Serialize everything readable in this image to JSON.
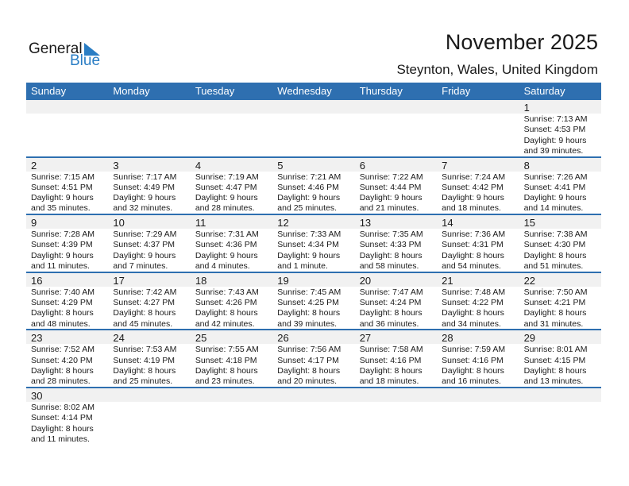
{
  "logo": {
    "general": "General",
    "blue": "Blue"
  },
  "title": "November 2025",
  "location": "Steynton, Wales, United Kingdom",
  "weekdays": [
    "Sunday",
    "Monday",
    "Tuesday",
    "Wednesday",
    "Thursday",
    "Friday",
    "Saturday"
  ],
  "colors": {
    "header": "#2e6fb0",
    "date_band": "#f1f1f1",
    "logo_blue": "#2a7dc4"
  },
  "days": [
    {
      "d": "1",
      "rise": "Sunrise: 7:13 AM",
      "set": "Sunset: 4:53 PM",
      "dl1": "Daylight: 9 hours",
      "dl2": "and 39 minutes."
    },
    {
      "d": "2",
      "rise": "Sunrise: 7:15 AM",
      "set": "Sunset: 4:51 PM",
      "dl1": "Daylight: 9 hours",
      "dl2": "and 35 minutes."
    },
    {
      "d": "3",
      "rise": "Sunrise: 7:17 AM",
      "set": "Sunset: 4:49 PM",
      "dl1": "Daylight: 9 hours",
      "dl2": "and 32 minutes."
    },
    {
      "d": "4",
      "rise": "Sunrise: 7:19 AM",
      "set": "Sunset: 4:47 PM",
      "dl1": "Daylight: 9 hours",
      "dl2": "and 28 minutes."
    },
    {
      "d": "5",
      "rise": "Sunrise: 7:21 AM",
      "set": "Sunset: 4:46 PM",
      "dl1": "Daylight: 9 hours",
      "dl2": "and 25 minutes."
    },
    {
      "d": "6",
      "rise": "Sunrise: 7:22 AM",
      "set": "Sunset: 4:44 PM",
      "dl1": "Daylight: 9 hours",
      "dl2": "and 21 minutes."
    },
    {
      "d": "7",
      "rise": "Sunrise: 7:24 AM",
      "set": "Sunset: 4:42 PM",
      "dl1": "Daylight: 9 hours",
      "dl2": "and 18 minutes."
    },
    {
      "d": "8",
      "rise": "Sunrise: 7:26 AM",
      "set": "Sunset: 4:41 PM",
      "dl1": "Daylight: 9 hours",
      "dl2": "and 14 minutes."
    },
    {
      "d": "9",
      "rise": "Sunrise: 7:28 AM",
      "set": "Sunset: 4:39 PM",
      "dl1": "Daylight: 9 hours",
      "dl2": "and 11 minutes."
    },
    {
      "d": "10",
      "rise": "Sunrise: 7:29 AM",
      "set": "Sunset: 4:37 PM",
      "dl1": "Daylight: 9 hours",
      "dl2": "and 7 minutes."
    },
    {
      "d": "11",
      "rise": "Sunrise: 7:31 AM",
      "set": "Sunset: 4:36 PM",
      "dl1": "Daylight: 9 hours",
      "dl2": "and 4 minutes."
    },
    {
      "d": "12",
      "rise": "Sunrise: 7:33 AM",
      "set": "Sunset: 4:34 PM",
      "dl1": "Daylight: 9 hours",
      "dl2": "and 1 minute."
    },
    {
      "d": "13",
      "rise": "Sunrise: 7:35 AM",
      "set": "Sunset: 4:33 PM",
      "dl1": "Daylight: 8 hours",
      "dl2": "and 58 minutes."
    },
    {
      "d": "14",
      "rise": "Sunrise: 7:36 AM",
      "set": "Sunset: 4:31 PM",
      "dl1": "Daylight: 8 hours",
      "dl2": "and 54 minutes."
    },
    {
      "d": "15",
      "rise": "Sunrise: 7:38 AM",
      "set": "Sunset: 4:30 PM",
      "dl1": "Daylight: 8 hours",
      "dl2": "and 51 minutes."
    },
    {
      "d": "16",
      "rise": "Sunrise: 7:40 AM",
      "set": "Sunset: 4:29 PM",
      "dl1": "Daylight: 8 hours",
      "dl2": "and 48 minutes."
    },
    {
      "d": "17",
      "rise": "Sunrise: 7:42 AM",
      "set": "Sunset: 4:27 PM",
      "dl1": "Daylight: 8 hours",
      "dl2": "and 45 minutes."
    },
    {
      "d": "18",
      "rise": "Sunrise: 7:43 AM",
      "set": "Sunset: 4:26 PM",
      "dl1": "Daylight: 8 hours",
      "dl2": "and 42 minutes."
    },
    {
      "d": "19",
      "rise": "Sunrise: 7:45 AM",
      "set": "Sunset: 4:25 PM",
      "dl1": "Daylight: 8 hours",
      "dl2": "and 39 minutes."
    },
    {
      "d": "20",
      "rise": "Sunrise: 7:47 AM",
      "set": "Sunset: 4:24 PM",
      "dl1": "Daylight: 8 hours",
      "dl2": "and 36 minutes."
    },
    {
      "d": "21",
      "rise": "Sunrise: 7:48 AM",
      "set": "Sunset: 4:22 PM",
      "dl1": "Daylight: 8 hours",
      "dl2": "and 34 minutes."
    },
    {
      "d": "22",
      "rise": "Sunrise: 7:50 AM",
      "set": "Sunset: 4:21 PM",
      "dl1": "Daylight: 8 hours",
      "dl2": "and 31 minutes."
    },
    {
      "d": "23",
      "rise": "Sunrise: 7:52 AM",
      "set": "Sunset: 4:20 PM",
      "dl1": "Daylight: 8 hours",
      "dl2": "and 28 minutes."
    },
    {
      "d": "24",
      "rise": "Sunrise: 7:53 AM",
      "set": "Sunset: 4:19 PM",
      "dl1": "Daylight: 8 hours",
      "dl2": "and 25 minutes."
    },
    {
      "d": "25",
      "rise": "Sunrise: 7:55 AM",
      "set": "Sunset: 4:18 PM",
      "dl1": "Daylight: 8 hours",
      "dl2": "and 23 minutes."
    },
    {
      "d": "26",
      "rise": "Sunrise: 7:56 AM",
      "set": "Sunset: 4:17 PM",
      "dl1": "Daylight: 8 hours",
      "dl2": "and 20 minutes."
    },
    {
      "d": "27",
      "rise": "Sunrise: 7:58 AM",
      "set": "Sunset: 4:16 PM",
      "dl1": "Daylight: 8 hours",
      "dl2": "and 18 minutes."
    },
    {
      "d": "28",
      "rise": "Sunrise: 7:59 AM",
      "set": "Sunset: 4:16 PM",
      "dl1": "Daylight: 8 hours",
      "dl2": "and 16 minutes."
    },
    {
      "d": "29",
      "rise": "Sunrise: 8:01 AM",
      "set": "Sunset: 4:15 PM",
      "dl1": "Daylight: 8 hours",
      "dl2": "and 13 minutes."
    },
    {
      "d": "30",
      "rise": "Sunrise: 8:02 AM",
      "set": "Sunset: 4:14 PM",
      "dl1": "Daylight: 8 hours",
      "dl2": "and 11 minutes."
    }
  ]
}
